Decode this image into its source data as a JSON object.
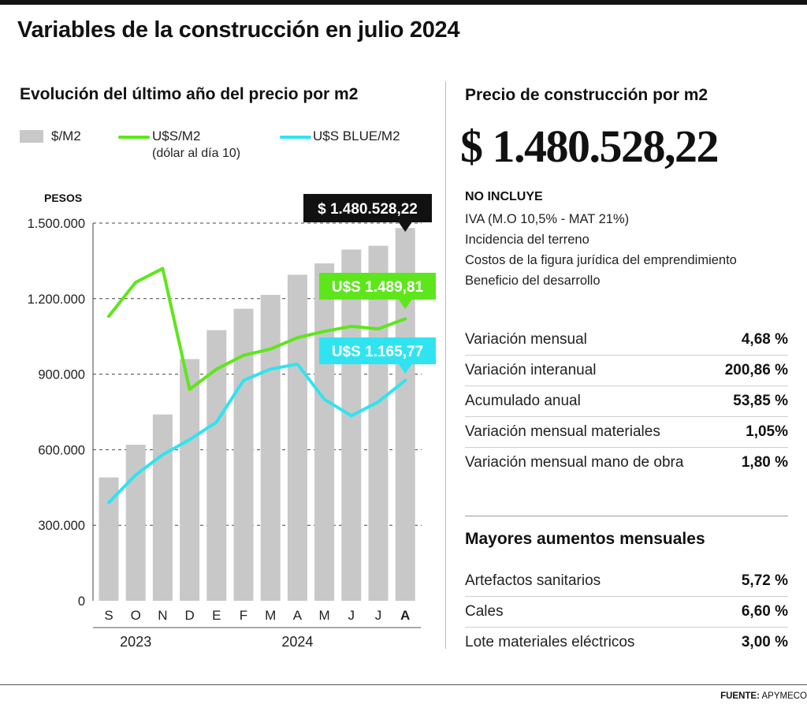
{
  "title": "Variables de la construcción en julio 2024",
  "left_subtitle": "Evolución del último año del precio por m2",
  "legend": {
    "bar": "$/M2",
    "green": "U$S/M2",
    "green_note": "(dólar al día 10)",
    "cyan": "U$S BLUE/M2"
  },
  "right_subtitle": "Precio de construcción por m2",
  "big_price": "$ 1.480.528,22",
  "excludes": {
    "title": "NO INCLUYE",
    "items": [
      "IVA (M.O 10,5% - MAT 21%)",
      "Incidencia del terreno",
      "Costos de la figura jurídica del emprendimiento",
      "Beneficio del desarrollo"
    ]
  },
  "stats": [
    {
      "label": "Variación mensual",
      "value": "4,68 %"
    },
    {
      "label": "Variación interanual",
      "value": "200,86 %"
    },
    {
      "label": "Acumulado anual",
      "value": "53,85 %"
    },
    {
      "label": "Variación mensual materiales",
      "value": "1,05%"
    },
    {
      "label": "Variación mensual mano de obra",
      "value": "1,80 %"
    }
  ],
  "increases": {
    "title": "Mayores aumentos mensuales",
    "items": [
      {
        "label": "Artefactos sanitarios",
        "value": "5,72 %"
      },
      {
        "label": "Cales",
        "value": "6,60 %"
      },
      {
        "label": "Lote materiales eléctricos",
        "value": "3,00 %"
      }
    ]
  },
  "source": {
    "label": "FUENTE:",
    "value": "APYMECO"
  },
  "colors": {
    "bar": "#c8c8c8",
    "green": "#5ee61c",
    "cyan": "#2fe4f0",
    "label_black": "#111111"
  },
  "chart_data": {
    "type": "bar",
    "ylabel": "PESOS",
    "ylim": [
      0,
      1500000
    ],
    "y_ticks": [
      "1.500.000",
      "1.200.000",
      "900.000",
      "600.000",
      "300.000",
      "0"
    ],
    "y_tick_values": [
      1500000,
      1200000,
      900000,
      600000,
      300000,
      0
    ],
    "categories": [
      "S",
      "O",
      "N",
      "D",
      "E",
      "F",
      "M",
      "A",
      "M",
      "J",
      "J",
      "A"
    ],
    "bold_category_index": 11,
    "year_groups": [
      {
        "label": "2023",
        "from": 0,
        "to": 2
      },
      {
        "label": "2024",
        "from": 3,
        "to": 11
      }
    ],
    "series": [
      {
        "name": "$/M2",
        "kind": "bar",
        "values": [
          490000,
          620000,
          740000,
          960000,
          1075000,
          1160000,
          1215000,
          1295000,
          1340000,
          1395000,
          1410000,
          1480528.22
        ]
      },
      {
        "name": "U$S/M2",
        "kind": "line",
        "values": [
          1130000,
          1265000,
          1320000,
          840000,
          920000,
          975000,
          1000000,
          1045000,
          1070000,
          1090000,
          1080000,
          1120000
        ]
      },
      {
        "name": "U$S BLUE/M2",
        "kind": "line",
        "values": [
          390000,
          500000,
          580000,
          640000,
          710000,
          875000,
          920000,
          940000,
          800000,
          735000,
          790000,
          875000
        ]
      }
    ],
    "callouts": [
      {
        "text": "$ 1.480.528,22",
        "series": 0
      },
      {
        "text": "U$S 1.489,81",
        "series": 1
      },
      {
        "text": "U$S 1.165,77",
        "series": 2
      }
    ]
  }
}
